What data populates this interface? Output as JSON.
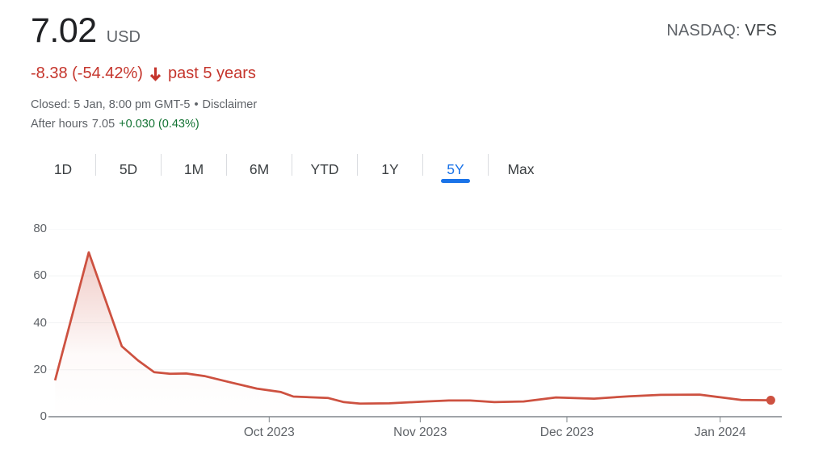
{
  "colors": {
    "price_text": "#202124",
    "muted_text": "#5f6368",
    "negative": "#c5352c",
    "positive": "#137333",
    "line": "#cd5140",
    "accent_blue": "#1a73e8",
    "gridline": "#f1f3f4",
    "axis": "#80868b",
    "divider": "#dadce0"
  },
  "header": {
    "price": "7.02",
    "currency": "USD",
    "exchange_label": "NASDAQ:",
    "ticker": "VFS",
    "change": "-8.38 (-54.42%)",
    "change_period": "past 5 years",
    "closed_line": "Closed: 5 Jan, 8:00 pm GMT-5",
    "separator": "•",
    "disclaimer_label": "Disclaimer",
    "after_hours_label": "After hours",
    "after_hours_price": "7.05",
    "after_hours_change": "+0.030 (0.43%)"
  },
  "tabs": {
    "items": [
      "1D",
      "5D",
      "1M",
      "6M",
      "YTD",
      "1Y",
      "5Y",
      "Max"
    ],
    "active": "5Y"
  },
  "chart_data": {
    "type": "area",
    "ylim": [
      0,
      80
    ],
    "y_ticks": [
      0,
      20,
      40,
      60,
      80
    ],
    "grid": true,
    "end_dot": true,
    "x_ticks": [
      {
        "label": "Oct 2023",
        "pos": 0.301
      },
      {
        "label": "Nov 2023",
        "pos": 0.507
      },
      {
        "label": "Dec 2023",
        "pos": 0.707
      },
      {
        "label": "Jan 2024",
        "pos": 0.916
      }
    ],
    "points": [
      {
        "x": 0.009,
        "v": 15.5
      },
      {
        "x": 0.055,
        "v": 70.0
      },
      {
        "x": 0.1,
        "v": 30.0
      },
      {
        "x": 0.122,
        "v": 24.0
      },
      {
        "x": 0.144,
        "v": 19.0
      },
      {
        "x": 0.166,
        "v": 18.3
      },
      {
        "x": 0.188,
        "v": 18.4
      },
      {
        "x": 0.213,
        "v": 17.3
      },
      {
        "x": 0.246,
        "v": 14.8
      },
      {
        "x": 0.284,
        "v": 12.0
      },
      {
        "x": 0.317,
        "v": 10.5
      },
      {
        "x": 0.334,
        "v": 8.6
      },
      {
        "x": 0.381,
        "v": 8.0
      },
      {
        "x": 0.403,
        "v": 6.2
      },
      {
        "x": 0.425,
        "v": 5.6
      },
      {
        "x": 0.465,
        "v": 5.7
      },
      {
        "x": 0.509,
        "v": 6.4
      },
      {
        "x": 0.546,
        "v": 6.9
      },
      {
        "x": 0.575,
        "v": 6.9
      },
      {
        "x": 0.608,
        "v": 6.2
      },
      {
        "x": 0.648,
        "v": 6.5
      },
      {
        "x": 0.692,
        "v": 8.2
      },
      {
        "x": 0.744,
        "v": 7.7
      },
      {
        "x": 0.791,
        "v": 8.7
      },
      {
        "x": 0.835,
        "v": 9.3
      },
      {
        "x": 0.888,
        "v": 9.4
      },
      {
        "x": 0.915,
        "v": 8.3
      },
      {
        "x": 0.945,
        "v": 7.1
      },
      {
        "x": 0.985,
        "v": 7.02
      }
    ]
  }
}
